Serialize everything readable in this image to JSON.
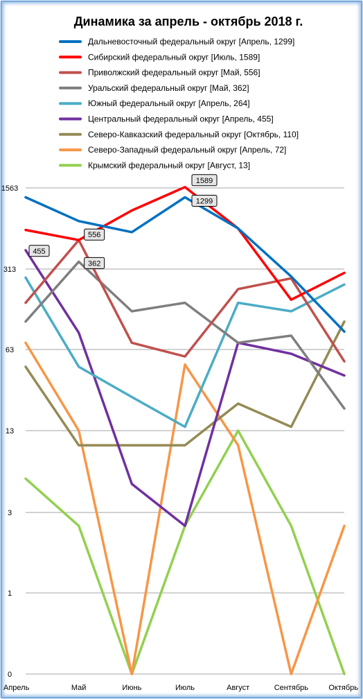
{
  "chart_data": {
    "type": "line",
    "title": "Динамика за апрель - октябрь 2018 г.",
    "xlabel": "",
    "ylabel": "",
    "y_scale": "log",
    "y_ticks": [
      0,
      1,
      3,
      13,
      63,
      313,
      1563
    ],
    "y_tick_labels": [
      "0",
      "1",
      "3",
      "13",
      "63",
      "313",
      "1563"
    ],
    "grid": true,
    "legend_position": "top",
    "categories": [
      "Апрель",
      "Май",
      "Июнь",
      "Июль",
      "Август",
      "Сентябрь",
      "Октябрь"
    ],
    "series": [
      {
        "name": "Дальневосточный федеральный округ [Апрель, 1299]",
        "color": "#0070C0",
        "values": [
          1299,
          810,
          650,
          1299,
          700,
          270,
          90
        ]
      },
      {
        "name": "Сибирский федеральный округ [Июль, 1589]",
        "color": "#FF0000",
        "values": [
          680,
          556,
          1000,
          1589,
          700,
          170,
          290
        ]
      },
      {
        "name": "Приволжский федеральный округ [Май, 556]",
        "color": "#C0504D",
        "values": [
          160,
          556,
          72,
          55,
          210,
          260,
          50
        ]
      },
      {
        "name": "Уральский федеральный округ [Май, 362]",
        "color": "#7F7F7F",
        "values": [
          110,
          362,
          135,
          160,
          72,
          83,
          20
        ]
      },
      {
        "name": "Южный федеральный округ [Апрель, 264]",
        "color": "#4BACC6",
        "values": [
          264,
          45,
          25,
          14,
          160,
          135,
          230
        ]
      },
      {
        "name": "Центральный федеральный округ [Апрель, 455]",
        "color": "#7030A0",
        "values": [
          455,
          88,
          5,
          2.5,
          72,
          58,
          38
        ]
      },
      {
        "name": "Северо-Кавказский федеральный округ [Октябрь, 110]",
        "color": "#948A54",
        "values": [
          45,
          10,
          10,
          10,
          22,
          14,
          110
        ]
      },
      {
        "name": "Северо-Западный федеральный округ [Апрель, 72]",
        "color": "#F79646",
        "values": [
          72,
          13,
          0,
          47,
          10,
          0,
          2.5
        ]
      },
      {
        "name": "Крымский федеральный округ [Август, 13]",
        "color": "#92D050",
        "values": [
          5.5,
          2.5,
          0,
          2.5,
          13,
          2.5,
          0
        ]
      }
    ],
    "annotations": [
      {
        "text": "1589",
        "series": 1,
        "point": 3
      },
      {
        "text": "1299",
        "series": 0,
        "point": 3
      },
      {
        "text": "556",
        "series": 2,
        "point": 1
      },
      {
        "text": "455",
        "series": 5,
        "point": 0
      },
      {
        "text": "362",
        "series": 3,
        "point": 1
      }
    ]
  }
}
